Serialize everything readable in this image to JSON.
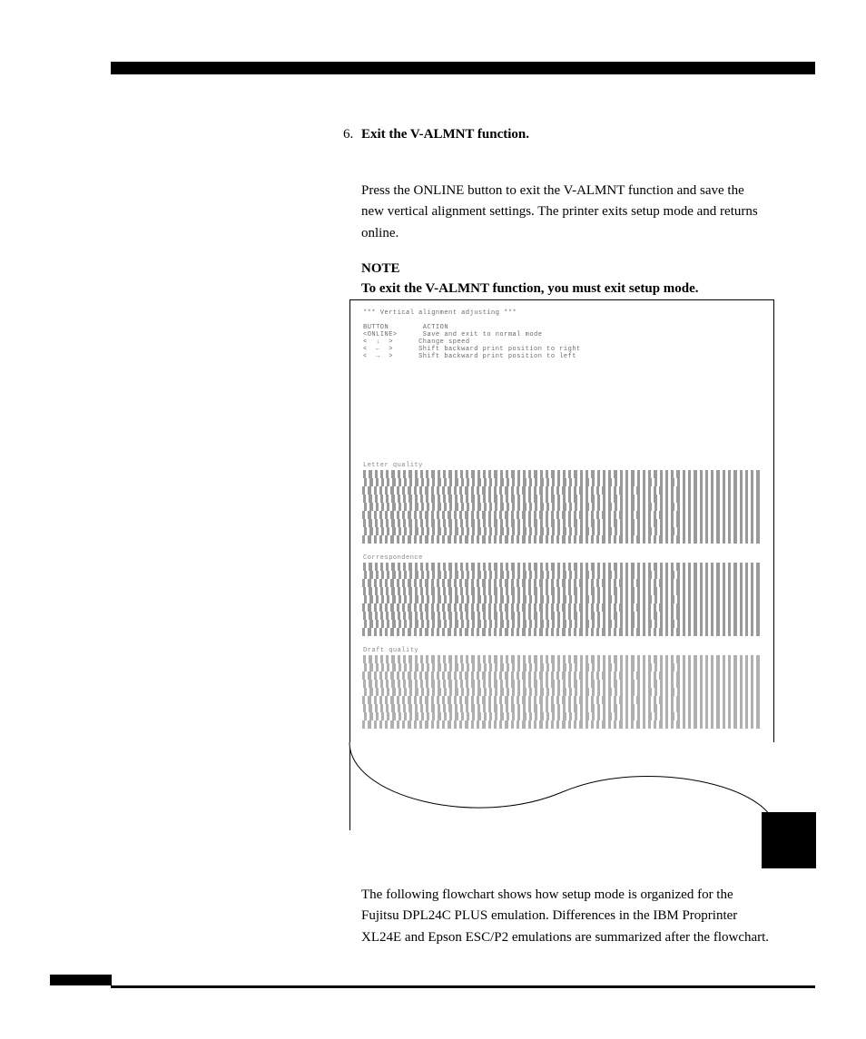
{
  "page": {
    "background_color": "#ffffff",
    "text_color": "#000000",
    "font_family": "Book Antiqua, Palatino, Georgia, serif",
    "mono_font": "Courier New, monospace"
  },
  "step": {
    "number": "6.",
    "title": "Exit the V-ALMNT function.",
    "body": "Press the ONLINE button to exit the V-ALMNT function and save the new vertical alignment settings.  The printer exits setup mode and returns online."
  },
  "note": {
    "label": "NOTE",
    "text": "To exit the V-ALMNT function, you must exit setup mode."
  },
  "printout": {
    "header": "*** Vertical alignment adjusting ***",
    "columns": "BUTTON        ACTION",
    "rows": [
      "<ONLINE>      Save and exit to normal mode",
      "<  ↓  >      Change speed",
      "<  ←  >      Shift backward print position to right",
      "<  →  >      Shift backward print position to left"
    ],
    "sections": [
      {
        "label": "Letter quality",
        "rows": 9,
        "bar_color": "#9a9a9a",
        "bar_count": 70
      },
      {
        "label": "Correspondence",
        "rows": 9,
        "bar_color": "#9a9a9a",
        "bar_count": 70
      },
      {
        "label": "Draft quality",
        "rows": 9,
        "bar_color": "#b0b0b0",
        "bar_count": 70
      }
    ],
    "border_color": "#000000"
  },
  "closing_para": "The following flowchart shows how setup mode is organized for the Fujitsu DPL24C PLUS emulation.  Differences in the IBM Proprinter XL24E and Epson ESC/P2 emulations are summarized after the flowchart.",
  "decorations": {
    "bar_color": "#000000",
    "side_tab_color": "#000000"
  }
}
